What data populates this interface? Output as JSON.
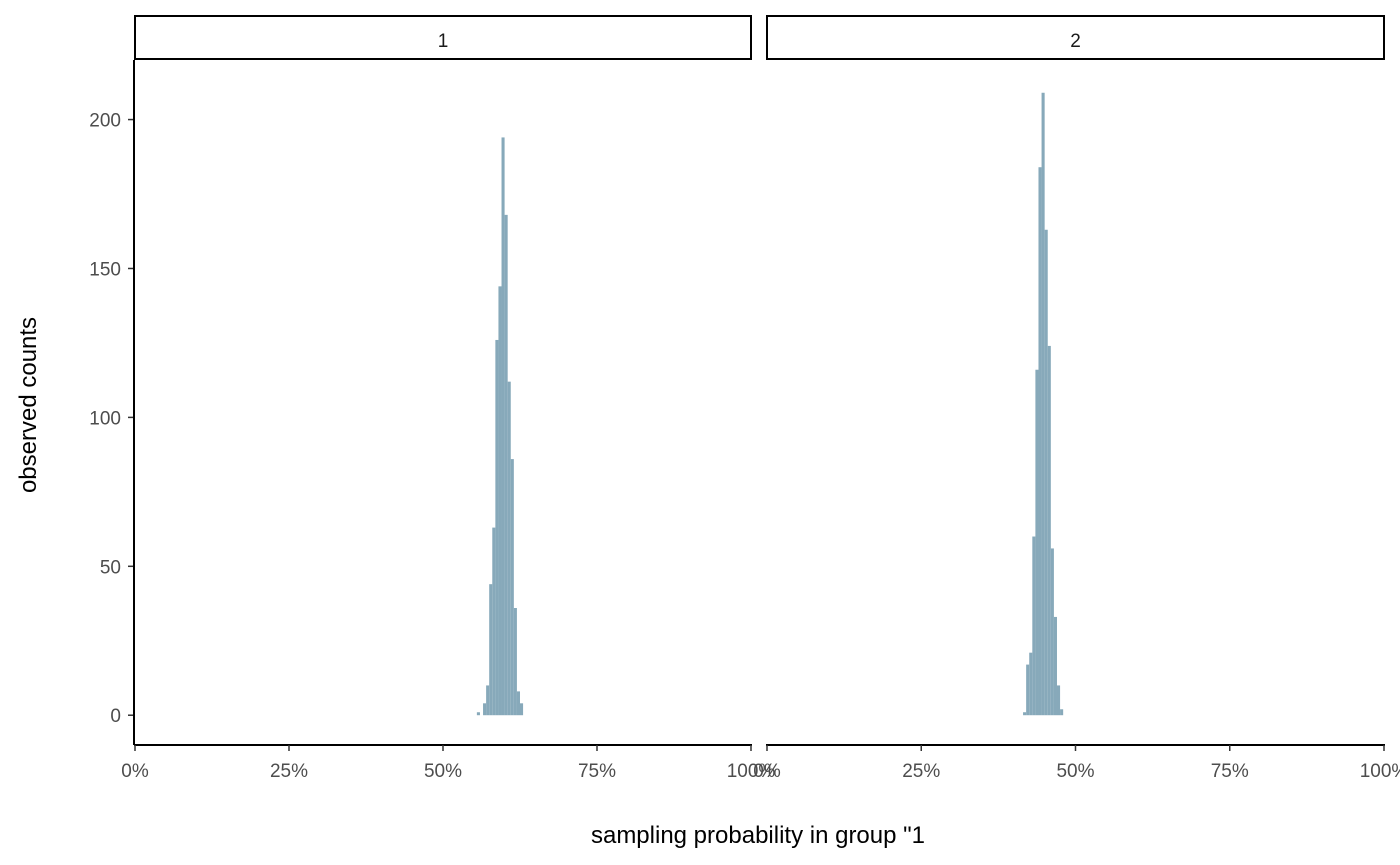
{
  "chart_data": {
    "type": "bar",
    "xlabel": "sampling probability in group \"1",
    "ylabel": "observed counts",
    "x_ticks": [
      "0%",
      "25%",
      "50%",
      "75%",
      "100%"
    ],
    "y_ticks": [
      0,
      50,
      100,
      150,
      200
    ],
    "xlim": [
      0,
      1
    ],
    "ylim": [
      -10,
      220
    ],
    "bar_color": "#87a9ba",
    "bin_width": 0.005,
    "panels": [
      {
        "strip_label": "1",
        "bins": [
          {
            "x": 0.5575,
            "count": 1
          },
          {
            "x": 0.5625,
            "count": 0
          },
          {
            "x": 0.5675,
            "count": 4
          },
          {
            "x": 0.5725,
            "count": 10
          },
          {
            "x": 0.5775,
            "count": 44
          },
          {
            "x": 0.5825,
            "count": 63
          },
          {
            "x": 0.5875,
            "count": 126
          },
          {
            "x": 0.5925,
            "count": 144
          },
          {
            "x": 0.5975,
            "count": 194
          },
          {
            "x": 0.6025,
            "count": 168
          },
          {
            "x": 0.6075,
            "count": 112
          },
          {
            "x": 0.6125,
            "count": 86
          },
          {
            "x": 0.6175,
            "count": 36
          },
          {
            "x": 0.6225,
            "count": 8
          },
          {
            "x": 0.6275,
            "count": 4
          }
        ]
      },
      {
        "strip_label": "2",
        "bins": [
          {
            "x": 0.4175,
            "count": 1
          },
          {
            "x": 0.4225,
            "count": 17
          },
          {
            "x": 0.4275,
            "count": 21
          },
          {
            "x": 0.4325,
            "count": 60
          },
          {
            "x": 0.4375,
            "count": 116
          },
          {
            "x": 0.4425,
            "count": 184
          },
          {
            "x": 0.4475,
            "count": 209
          },
          {
            "x": 0.4525,
            "count": 163
          },
          {
            "x": 0.4575,
            "count": 124
          },
          {
            "x": 0.4625,
            "count": 56
          },
          {
            "x": 0.4675,
            "count": 33
          },
          {
            "x": 0.4725,
            "count": 10
          },
          {
            "x": 0.4775,
            "count": 2
          }
        ]
      }
    ]
  }
}
